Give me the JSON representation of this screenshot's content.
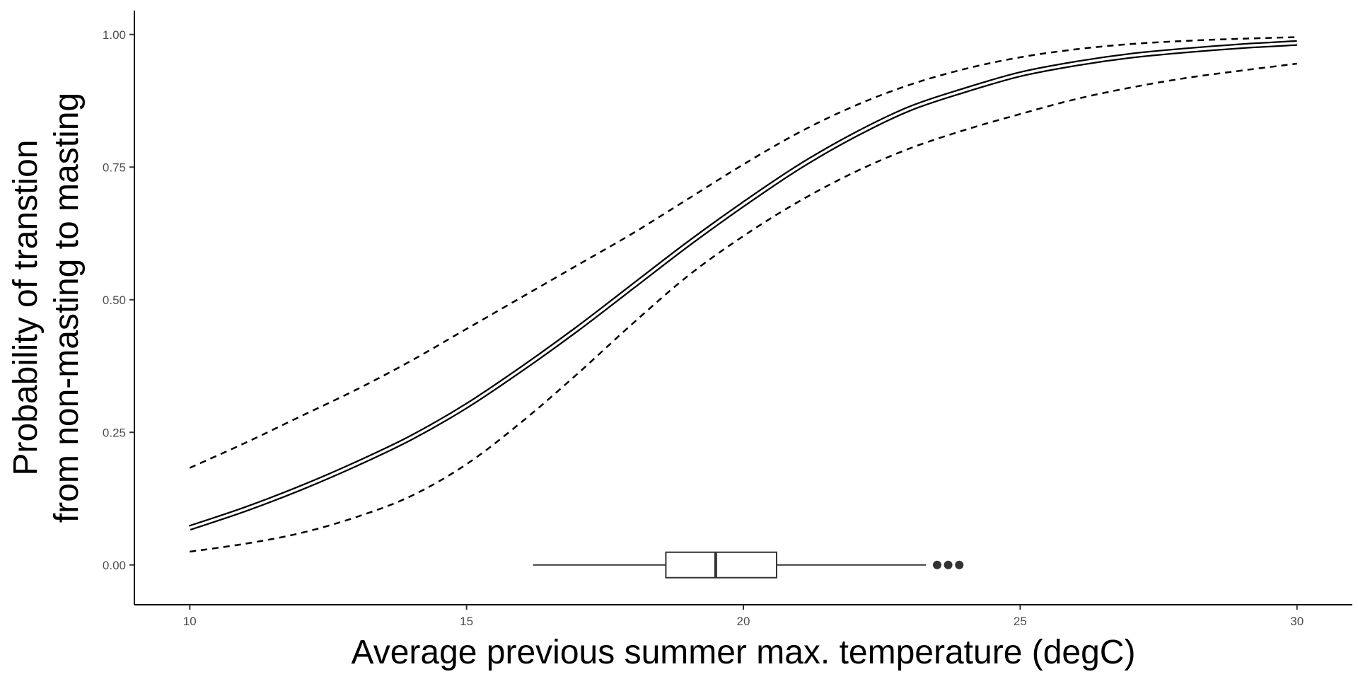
{
  "chart_data": {
    "type": "line",
    "title": "",
    "xlabel": "Average previous summer max. temperature (degC)",
    "ylabel_line1": "Probability of transtion",
    "ylabel_line2": "from non-masting to masting",
    "xlim": [
      9,
      31
    ],
    "ylim": [
      -0.075,
      1.045
    ],
    "x_ticks": [
      10,
      15,
      20,
      25,
      30
    ],
    "y_ticks": [
      0,
      0.25,
      0.5,
      0.75,
      1
    ],
    "y_tick_labels": [
      "0.00",
      "0.25",
      "0.50",
      "0.75",
      "1.00"
    ],
    "grid": false,
    "legend": "none",
    "x": [
      10,
      11,
      12,
      13,
      14,
      15,
      16,
      17,
      18,
      19,
      20,
      21,
      22,
      23,
      24,
      25,
      26,
      27,
      28,
      29,
      30
    ],
    "series": [
      {
        "style": "double-solid",
        "values": [
          0.07,
          0.105,
          0.145,
          0.19,
          0.24,
          0.3,
          0.37,
          0.445,
          0.525,
          0.605,
          0.68,
          0.75,
          0.81,
          0.86,
          0.895,
          0.925,
          0.945,
          0.96,
          0.97,
          0.978,
          0.984
        ]
      },
      {
        "style": "dashed",
        "values": [
          0.183,
          0.23,
          0.28,
          0.33,
          0.385,
          0.445,
          0.505,
          0.565,
          0.625,
          0.69,
          0.755,
          0.815,
          0.865,
          0.905,
          0.935,
          0.957,
          0.972,
          0.982,
          0.988,
          0.992,
          0.995
        ]
      },
      {
        "style": "dashed",
        "values": [
          0.025,
          0.04,
          0.06,
          0.09,
          0.13,
          0.19,
          0.27,
          0.36,
          0.455,
          0.545,
          0.62,
          0.685,
          0.74,
          0.785,
          0.82,
          0.85,
          0.878,
          0.9,
          0.918,
          0.932,
          0.945
        ]
      }
    ],
    "boxplot": {
      "y": 0,
      "whisker_low": 16.2,
      "q1": 18.6,
      "median": 19.5,
      "q3": 20.6,
      "whisker_high": 23.3,
      "outliers": [
        23.5,
        23.7,
        23.9
      ]
    },
    "colors": {
      "line": "#000000",
      "box": "#333333",
      "axis": "#000000",
      "tick_text": "#4d4d4d"
    }
  }
}
